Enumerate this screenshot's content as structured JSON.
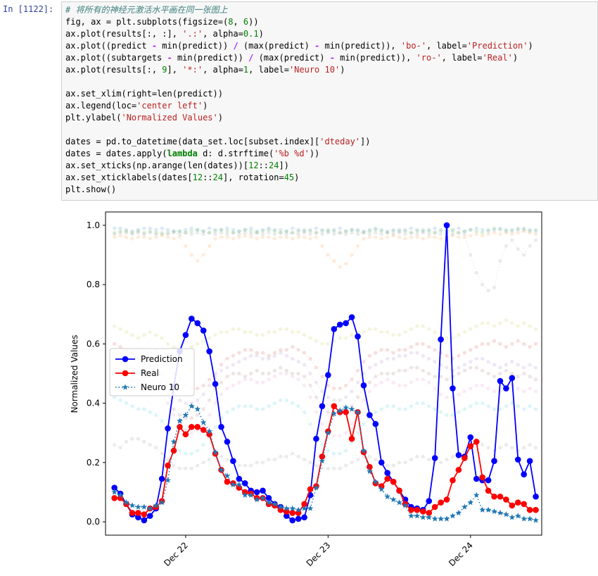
{
  "cell": {
    "prompt": "In [1122]:",
    "code_lines": [
      "# 将所有的神经元激活水平画在同一张图上",
      "fig, ax = plt.subplots(figsize=(8, 6))",
      "ax.plot(results[:, :], '.:', alpha=0.1)",
      "ax.plot((predict - min(predict)) / (max(predict) - min(predict)), 'bo-', label='Prediction')",
      "ax.plot((subtargets - min(predict)) / (max(predict) - min(predict)), 'ro-', label='Real')",
      "ax.plot(results[:, 9], '*:', alpha=1, label='Neuro 10')",
      "",
      "ax.set_xlim(right=len(predict))",
      "ax.legend(loc='center left')",
      "plt.ylabel('Normalized Values')",
      "",
      "dates = pd.to_datetime(data_set.loc[subset.index]['dteday'])",
      "dates = dates.apply(lambda d: d.strftime('%b %d'))",
      "ax.set_xticks(np.arange(len(dates))[12::24])",
      "ax.set_xticklabels(dates[12::24], rotation=45)",
      "plt.show()"
    ]
  },
  "chart_data": {
    "type": "line",
    "title": "",
    "xlabel": "",
    "ylabel": "Normalized Values",
    "xlim": [
      -1.5,
      72
    ],
    "ylim": [
      -0.045,
      1.045
    ],
    "xticks": [
      12,
      36,
      60
    ],
    "xtick_labels": [
      "Dec 22",
      "Dec 23",
      "Dec 24"
    ],
    "yticks": [
      0.0,
      0.2,
      0.4,
      0.6,
      0.8,
      1.0
    ],
    "ytick_labels": [
      "0.0",
      "0.2",
      "0.4",
      "0.6",
      "0.8",
      "1.0"
    ],
    "legend_position": "center left",
    "grid": false,
    "series": [
      {
        "name": "Prediction",
        "color": "#0000ff",
        "style": "bo-",
        "values": [
          0.115,
          0.095,
          0.06,
          0.025,
          0.015,
          0.005,
          0.02,
          0.045,
          0.145,
          0.315,
          0.455,
          0.575,
          0.63,
          0.685,
          0.67,
          0.645,
          0.575,
          0.465,
          0.32,
          0.27,
          0.205,
          0.145,
          0.13,
          0.105,
          0.1,
          0.105,
          0.08,
          0.06,
          0.05,
          0.02,
          0.005,
          0.01,
          0.015,
          0.09,
          0.28,
          0.39,
          0.495,
          0.65,
          0.665,
          0.67,
          0.69,
          0.625,
          0.46,
          0.36,
          0.33,
          0.2,
          0.165,
          0.135,
          0.105,
          0.075,
          0.05,
          0.045,
          0.04,
          0.07,
          0.215,
          0.615,
          1.0,
          0.45,
          0.225,
          0.22,
          0.285,
          0.145,
          0.14,
          0.14,
          0.205,
          0.475,
          0.45,
          0.485,
          0.21,
          0.16,
          0.205,
          0.085
        ]
      },
      {
        "name": "Real",
        "color": "#ff0000",
        "style": "ro-",
        "values": [
          0.08,
          0.08,
          0.06,
          0.03,
          0.03,
          0.025,
          0.045,
          0.05,
          0.07,
          0.19,
          0.24,
          0.32,
          0.295,
          0.32,
          0.32,
          0.31,
          0.295,
          0.23,
          0.175,
          0.135,
          0.13,
          0.115,
          0.1,
          0.095,
          0.08,
          0.08,
          0.06,
          0.055,
          0.04,
          0.035,
          0.03,
          0.03,
          0.06,
          0.11,
          0.12,
          0.22,
          0.305,
          0.39,
          0.37,
          0.37,
          0.28,
          0.37,
          0.235,
          0.185,
          0.13,
          0.12,
          0.145,
          0.135,
          0.105,
          0.06,
          0.04,
          0.04,
          0.035,
          0.03,
          0.05,
          0.065,
          0.075,
          0.14,
          0.175,
          0.215,
          0.255,
          0.27,
          0.15,
          0.105,
          0.085,
          0.085,
          0.075,
          0.055,
          0.065,
          0.06,
          0.04,
          0.04
        ]
      },
      {
        "name": "Neuro 10",
        "color": "#1f77b4",
        "style": "*:",
        "values": [
          0.1,
          0.09,
          0.065,
          0.055,
          0.05,
          0.05,
          0.045,
          0.055,
          0.065,
          0.14,
          0.27,
          0.34,
          0.36,
          0.39,
          0.38,
          0.335,
          0.305,
          0.235,
          0.175,
          0.155,
          0.125,
          0.125,
          0.09,
          0.09,
          0.075,
          0.08,
          0.065,
          0.06,
          0.05,
          0.045,
          0.045,
          0.04,
          0.045,
          0.045,
          0.115,
          0.205,
          0.3,
          0.365,
          0.375,
          0.385,
          0.38,
          0.37,
          0.24,
          0.17,
          0.135,
          0.11,
          0.085,
          0.075,
          0.065,
          0.055,
          0.02,
          0.02,
          0.015,
          0.015,
          0.01,
          0.01,
          0.01,
          0.02,
          0.03,
          0.05,
          0.065,
          0.09,
          0.04,
          0.04,
          0.035,
          0.03,
          0.025,
          0.015,
          0.02,
          0.01,
          0.01,
          0.005
        ]
      }
    ],
    "background_neurons": [
      {
        "color": "#1f77b4",
        "values": [
          0.99,
          0.99,
          0.985,
          0.98,
          0.985,
          0.99,
          0.99,
          0.985,
          0.99,
          0.985,
          0.98,
          0.98,
          0.985,
          0.99,
          0.985,
          0.98,
          0.99,
          0.985,
          0.985,
          0.99,
          0.985,
          0.98,
          0.985,
          0.99,
          0.98,
          0.985,
          0.99,
          0.985,
          0.985,
          0.98,
          0.99,
          0.985,
          0.98,
          0.985,
          0.99,
          0.985,
          0.98,
          0.985,
          0.99,
          0.98,
          0.985,
          0.985,
          0.98,
          0.985,
          0.99,
          0.985,
          0.98,
          0.985,
          0.98,
          0.985,
          0.99,
          0.985,
          0.98,
          0.985,
          0.99,
          0.985,
          0.98,
          0.985,
          0.99,
          0.98,
          0.985,
          0.99,
          0.985,
          0.98,
          0.985,
          0.99,
          0.985,
          0.98,
          0.985,
          0.99,
          0.985,
          0.98
        ]
      },
      {
        "color": "#ff7f0e",
        "values": [
          0.96,
          0.965,
          0.96,
          0.955,
          0.96,
          0.96,
          0.955,
          0.96,
          0.965,
          0.96,
          0.955,
          0.96,
          0.93,
          0.9,
          0.88,
          0.9,
          0.93,
          0.955,
          0.96,
          0.96,
          0.955,
          0.96,
          0.965,
          0.96,
          0.955,
          0.96,
          0.96,
          0.955,
          0.96,
          0.96,
          0.955,
          0.96,
          0.96,
          0.955,
          0.96,
          0.93,
          0.9,
          0.88,
          0.86,
          0.87,
          0.9,
          0.93,
          0.955,
          0.96,
          0.96,
          0.955,
          0.96,
          0.965,
          0.96,
          0.955,
          0.96,
          0.96,
          0.955,
          0.96,
          0.96,
          0.955,
          0.96,
          0.965,
          0.96,
          0.96,
          0.965,
          0.97,
          0.965,
          0.97,
          0.975,
          0.97,
          0.975,
          0.97,
          0.975,
          0.98,
          0.975,
          0.97
        ]
      },
      {
        "color": "#2ca02c",
        "values": [
          0.975,
          0.98,
          0.98,
          0.975,
          0.98,
          0.975,
          0.98,
          0.975,
          0.97,
          0.975,
          0.98,
          0.98,
          0.975,
          0.98,
          0.985,
          0.98,
          0.975,
          0.98,
          0.985,
          0.98,
          0.975,
          0.98,
          0.985,
          0.98,
          0.975,
          0.98,
          0.985,
          0.98,
          0.975,
          0.98,
          0.975,
          0.98,
          0.985,
          0.98,
          0.975,
          0.98,
          0.985,
          0.98,
          0.975,
          0.98,
          0.985,
          0.98,
          0.975,
          0.98,
          0.985,
          0.98,
          0.975,
          0.98,
          0.985,
          0.98,
          0.975,
          0.98,
          0.985,
          0.98,
          0.975,
          0.98,
          0.985,
          0.98,
          0.975,
          0.98,
          0.985,
          0.98,
          0.975,
          0.985,
          0.99,
          0.985,
          0.98,
          0.985,
          0.99,
          0.985,
          0.98,
          0.985
        ]
      },
      {
        "color": "#7f7f7f",
        "values": [
          0.97,
          0.975,
          0.975,
          0.97,
          0.975,
          0.97,
          0.975,
          0.97,
          0.975,
          0.97,
          0.975,
          0.97,
          0.975,
          0.97,
          0.975,
          0.97,
          0.975,
          0.97,
          0.975,
          0.97,
          0.975,
          0.97,
          0.975,
          0.97,
          0.975,
          0.97,
          0.975,
          0.97,
          0.975,
          0.97,
          0.975,
          0.97,
          0.975,
          0.97,
          0.975,
          0.97,
          0.975,
          0.97,
          0.975,
          0.97,
          0.975,
          0.97,
          0.975,
          0.97,
          0.975,
          0.97,
          0.975,
          0.97,
          0.975,
          0.97,
          0.975,
          0.97,
          0.975,
          0.97,
          0.975,
          0.97,
          0.975,
          0.97,
          0.975,
          0.97,
          0.9,
          0.84,
          0.8,
          0.78,
          0.79,
          0.88,
          0.93,
          0.95,
          0.92,
          0.9,
          0.93,
          0.95
        ]
      },
      {
        "color": "#d62728",
        "values": [
          0.6,
          0.59,
          0.58,
          0.57,
          0.55,
          0.56,
          0.57,
          0.58,
          0.56,
          0.53,
          0.5,
          0.48,
          0.46,
          0.45,
          0.45,
          0.46,
          0.48,
          0.5,
          0.53,
          0.55,
          0.56,
          0.57,
          0.58,
          0.58,
          0.57,
          0.57,
          0.56,
          0.57,
          0.58,
          0.58,
          0.59,
          0.58,
          0.57,
          0.55,
          0.52,
          0.49,
          0.46,
          0.45,
          0.45,
          0.46,
          0.48,
          0.51,
          0.54,
          0.56,
          0.57,
          0.58,
          0.58,
          0.57,
          0.58,
          0.58,
          0.59,
          0.6,
          0.6,
          0.59,
          0.58,
          0.57,
          0.56,
          0.55,
          0.56,
          0.57,
          0.58,
          0.59,
          0.6,
          0.6,
          0.61,
          0.6,
          0.59,
          0.6,
          0.61,
          0.6,
          0.59,
          0.6
        ]
      },
      {
        "color": "#9467bd",
        "values": [
          0.55,
          0.54,
          0.53,
          0.52,
          0.51,
          0.52,
          0.53,
          0.52,
          0.5,
          0.47,
          0.43,
          0.41,
          0.4,
          0.4,
          0.41,
          0.43,
          0.46,
          0.49,
          0.51,
          0.52,
          0.53,
          0.54,
          0.55,
          0.56,
          0.56,
          0.55,
          0.55,
          0.56,
          0.57,
          0.56,
          0.55,
          0.54,
          0.53,
          0.5,
          0.47,
          0.44,
          0.42,
          0.41,
          0.41,
          0.42,
          0.44,
          0.47,
          0.5,
          0.52,
          0.53,
          0.54,
          0.55,
          0.55,
          0.56,
          0.56,
          0.57,
          0.57,
          0.56,
          0.55,
          0.54,
          0.53,
          0.52,
          0.51,
          0.52,
          0.53,
          0.54,
          0.55,
          0.55,
          0.54,
          0.53,
          0.52,
          0.53,
          0.54,
          0.53,
          0.52,
          0.53,
          0.52
        ]
      },
      {
        "color": "#8c564b",
        "values": [
          0.5,
          0.5,
          0.49,
          0.48,
          0.48,
          0.49,
          0.5,
          0.49,
          0.47,
          0.43,
          0.38,
          0.36,
          0.35,
          0.35,
          0.36,
          0.38,
          0.41,
          0.45,
          0.47,
          0.49,
          0.5,
          0.5,
          0.49,
          0.5,
          0.51,
          0.5,
          0.5,
          0.51,
          0.52,
          0.51,
          0.5,
          0.5,
          0.49,
          0.46,
          0.42,
          0.39,
          0.37,
          0.36,
          0.36,
          0.37,
          0.39,
          0.42,
          0.45,
          0.47,
          0.49,
          0.5,
          0.5,
          0.5,
          0.51,
          0.51,
          0.52,
          0.52,
          0.51,
          0.5,
          0.49,
          0.49,
          0.48,
          0.49,
          0.5,
          0.51,
          0.52,
          0.52,
          0.51,
          0.5,
          0.49,
          0.5,
          0.51,
          0.5,
          0.49,
          0.5,
          0.49,
          0.48
        ]
      },
      {
        "color": "#bcbd22",
        "values": [
          0.66,
          0.65,
          0.64,
          0.63,
          0.62,
          0.63,
          0.64,
          0.63,
          0.62,
          0.6,
          0.59,
          0.58,
          0.58,
          0.59,
          0.6,
          0.61,
          0.62,
          0.63,
          0.64,
          0.64,
          0.65,
          0.65,
          0.64,
          0.64,
          0.63,
          0.63,
          0.64,
          0.64,
          0.65,
          0.65,
          0.64,
          0.64,
          0.63,
          0.62,
          0.61,
          0.6,
          0.6,
          0.61,
          0.62,
          0.62,
          0.63,
          0.64,
          0.64,
          0.65,
          0.65,
          0.64,
          0.64,
          0.63,
          0.63,
          0.64,
          0.65,
          0.66,
          0.66,
          0.65,
          0.64,
          0.63,
          0.62,
          0.62,
          0.63,
          0.64,
          0.65,
          0.66,
          0.67,
          0.67,
          0.66,
          0.67,
          0.68,
          0.67,
          0.66,
          0.67,
          0.66,
          0.65
        ]
      },
      {
        "color": "#e377c2",
        "values": [
          0.52,
          0.51,
          0.5,
          0.49,
          0.48,
          0.47,
          0.46,
          0.45,
          0.43,
          0.4,
          0.36,
          0.33,
          0.31,
          0.3,
          0.31,
          0.33,
          0.36,
          0.4,
          0.43,
          0.45,
          0.46,
          0.47,
          0.48,
          0.48,
          0.47,
          0.47,
          0.48,
          0.49,
          0.5,
          0.5,
          0.49,
          0.48,
          0.46,
          0.42,
          0.37,
          0.33,
          0.3,
          0.29,
          0.29,
          0.3,
          0.33,
          0.37,
          0.41,
          0.44,
          0.46,
          0.47,
          0.48,
          0.47,
          0.46,
          0.46,
          0.47,
          0.48,
          0.48,
          0.47,
          0.45,
          0.43,
          0.42,
          0.42,
          0.43,
          0.44,
          0.45,
          0.46,
          0.46,
          0.45,
          0.44,
          0.44,
          0.45,
          0.46,
          0.45,
          0.44,
          0.45,
          0.44
        ]
      },
      {
        "color": "#17becf",
        "values": [
          0.42,
          0.41,
          0.4,
          0.39,
          0.38,
          0.38,
          0.37,
          0.36,
          0.34,
          0.3,
          0.26,
          0.24,
          0.23,
          0.23,
          0.24,
          0.26,
          0.29,
          0.32,
          0.35,
          0.37,
          0.38,
          0.39,
          0.39,
          0.39,
          0.38,
          0.38,
          0.39,
          0.4,
          0.41,
          0.41,
          0.4,
          0.39,
          0.37,
          0.33,
          0.29,
          0.26,
          0.24,
          0.23,
          0.23,
          0.24,
          0.27,
          0.3,
          0.33,
          0.36,
          0.37,
          0.38,
          0.39,
          0.39,
          0.38,
          0.38,
          0.39,
          0.4,
          0.4,
          0.39,
          0.38,
          0.37,
          0.36,
          0.36,
          0.37,
          0.38,
          0.39,
          0.4,
          0.4,
          0.39,
          0.38,
          0.38,
          0.39,
          0.4,
          0.39,
          0.38,
          0.39,
          0.38
        ]
      },
      {
        "color": "#7f7f7f",
        "values": [
          0.26,
          0.25,
          0.27,
          0.28,
          0.28,
          0.27,
          0.26,
          0.25,
          0.23,
          0.21,
          0.19,
          0.18,
          0.18,
          0.18,
          0.19,
          0.2,
          0.21,
          0.22,
          0.22,
          0.21,
          0.2,
          0.19,
          0.19,
          0.19,
          0.2,
          0.2,
          0.21,
          0.21,
          0.22,
          0.22,
          0.23,
          0.22,
          0.21,
          0.2,
          0.19,
          0.18,
          0.18,
          0.18,
          0.18,
          0.19,
          0.2,
          0.21,
          0.22,
          0.22,
          0.21,
          0.2,
          0.19,
          0.19,
          0.2,
          0.2,
          0.21,
          0.22,
          0.22,
          0.21,
          0.2,
          0.2,
          0.21,
          0.22,
          0.23,
          0.24,
          0.25,
          0.26,
          0.26,
          0.25,
          0.24,
          0.25,
          0.26,
          0.25,
          0.24,
          0.25,
          0.26,
          0.25
        ]
      }
    ]
  }
}
